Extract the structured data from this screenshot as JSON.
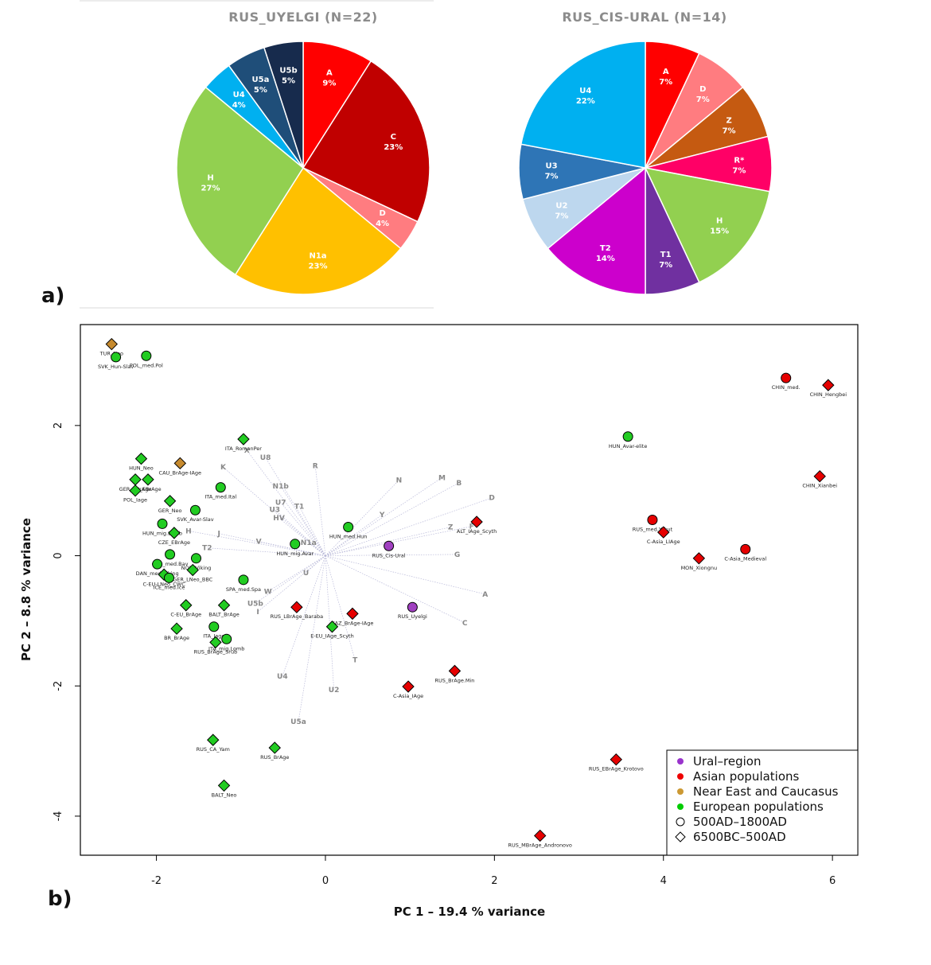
{
  "figure": {
    "panel_a_label": "a)",
    "panel_b_label": "b)"
  },
  "chart_data": [
    {
      "type": "pie",
      "title": "RUS_UYELGI (N=22)",
      "slices": [
        {
          "label": "A",
          "pct": "9%",
          "value": 9,
          "color": "#ff0000"
        },
        {
          "label": "C",
          "pct": "23%",
          "value": 23,
          "color": "#c00000"
        },
        {
          "label": "D",
          "pct": "4%",
          "value": 4,
          "color": "#ff7c80"
        },
        {
          "label": "N1a",
          "pct": "23%",
          "value": 23,
          "color": "#ffc000"
        },
        {
          "label": "H",
          "pct": "27%",
          "value": 27,
          "color": "#92d050"
        },
        {
          "label": "U4",
          "pct": "4%",
          "value": 4,
          "color": "#00b0f0"
        },
        {
          "label": "U5a",
          "pct": "5%",
          "value": 5,
          "color": "#1f4e79"
        },
        {
          "label": "U5b",
          "pct": "5%",
          "value": 5,
          "color": "#172b4d"
        }
      ]
    },
    {
      "type": "pie",
      "title": "RUS_CIS-URAL (N=14)",
      "slices": [
        {
          "label": "A",
          "pct": "7%",
          "value": 7,
          "color": "#ff0000"
        },
        {
          "label": "D",
          "pct": "7%",
          "value": 7,
          "color": "#ff7c80"
        },
        {
          "label": "Z",
          "pct": "7%",
          "value": 7,
          "color": "#c55a11"
        },
        {
          "label": "R*",
          "pct": "7%",
          "value": 7,
          "color": "#ff0066"
        },
        {
          "label": "H",
          "pct": "15%",
          "value": 15,
          "color": "#92d050"
        },
        {
          "label": "T1",
          "pct": "7%",
          "value": 7,
          "color": "#7030a0"
        },
        {
          "label": "T2",
          "pct": "14%",
          "value": 14,
          "color": "#cc00cc"
        },
        {
          "label": "U2",
          "pct": "7%",
          "value": 7,
          "color": "#bdd7ee"
        },
        {
          "label": "U3",
          "pct": "7%",
          "value": 7,
          "color": "#2e75b6"
        },
        {
          "label": "U4",
          "pct": "22%",
          "value": 22,
          "color": "#00b0f0"
        }
      ]
    },
    {
      "type": "scatter",
      "xlabel": "PC 1 –  19.4 % variance",
      "ylabel": "PC 2 –  8.8 % variance",
      "xlim": [
        -2.9,
        6.3
      ],
      "ylim": [
        -4.6,
        3.55
      ],
      "xticks": [
        -2,
        0,
        2,
        4,
        6
      ],
      "yticks": [
        -4,
        -2,
        0,
        2
      ],
      "legend_position": "bottom-right",
      "legend": [
        {
          "label": "Ural–region",
          "symbol": "dot",
          "color": "#9933cc"
        },
        {
          "label": "Asian populations",
          "symbol": "dot",
          "color": "#ee0000"
        },
        {
          "label": "Near East and Caucasus",
          "symbol": "dot",
          "color": "#cc9933"
        },
        {
          "label": "European populations",
          "symbol": "dot",
          "color": "#00cc00"
        },
        {
          "label": "500AD–1800AD",
          "symbol": "circle",
          "color": "#000000"
        },
        {
          "label": "6500BC–500AD",
          "symbol": "diamond",
          "color": "#000000"
        }
      ],
      "group_colors": {
        "ural": "#a040c0",
        "asian": "#e60000",
        "neareast": "#c68a2e",
        "european": "#22cc22"
      },
      "points": [
        {
          "label": "TUR_Neo",
          "x": -2.53,
          "y": 3.25,
          "group": "neareast",
          "shape": "diamond"
        },
        {
          "label": "SVK_Hun-Slav",
          "x": -2.48,
          "y": 3.05,
          "group": "european",
          "shape": "circle"
        },
        {
          "label": "POL_med.Pol",
          "x": -2.12,
          "y": 3.07,
          "group": "european",
          "shape": "circle"
        },
        {
          "label": "CHIN_med.",
          "x": 5.45,
          "y": 2.73,
          "group": "asian",
          "shape": "circle"
        },
        {
          "label": "CHIN_Hengbei",
          "x": 5.95,
          "y": 2.62,
          "group": "asian",
          "shape": "diamond"
        },
        {
          "label": "ITA_RomanPer",
          "x": -0.97,
          "y": 1.79,
          "group": "european",
          "shape": "diamond"
        },
        {
          "label": "HUN_Avar-elite",
          "x": 3.58,
          "y": 1.83,
          "group": "european",
          "shape": "circle"
        },
        {
          "label": "HUN_Neo",
          "x": -2.18,
          "y": 1.49,
          "group": "european",
          "shape": "diamond"
        },
        {
          "label": "CAU_BrAge-IAge",
          "x": -1.72,
          "y": 1.42,
          "group": "neareast",
          "shape": "diamond"
        },
        {
          "label": "GER_EBrAge",
          "x": -2.25,
          "y": 1.17,
          "group": "european",
          "shape": "diamond"
        },
        {
          "label": "IB_EBrAge",
          "x": -2.1,
          "y": 1.17,
          "group": "european",
          "shape": "diamond"
        },
        {
          "label": "POL_Iage",
          "x": -2.25,
          "y": 1.0,
          "group": "european",
          "shape": "diamond"
        },
        {
          "label": "ITA_med.Ital",
          "x": -1.24,
          "y": 1.05,
          "group": "european",
          "shape": "circle"
        },
        {
          "label": "CHIN_Xianbei",
          "x": 5.85,
          "y": 1.22,
          "group": "asian",
          "shape": "diamond"
        },
        {
          "label": "GER_Neo",
          "x": -1.84,
          "y": 0.84,
          "group": "european",
          "shape": "diamond"
        },
        {
          "label": "SVK_Avar-Slav",
          "x": -1.54,
          "y": 0.7,
          "group": "european",
          "shape": "circle"
        },
        {
          "label": "HUN_mig.Lomb",
          "x": -1.93,
          "y": 0.49,
          "group": "european",
          "shape": "circle"
        },
        {
          "label": "CZE_EBrAge",
          "x": -1.79,
          "y": 0.35,
          "group": "european",
          "shape": "diamond"
        },
        {
          "label": "HUN_med.Hun",
          "x": 0.27,
          "y": 0.44,
          "group": "european",
          "shape": "circle"
        },
        {
          "label": "ALT_IAge_Scyth",
          "x": 1.79,
          "y": 0.52,
          "group": "asian",
          "shape": "diamond"
        },
        {
          "label": "RUS_med.Yakut",
          "x": 3.87,
          "y": 0.55,
          "group": "asian",
          "shape": "circle"
        },
        {
          "label": "C-Asia_LIAge",
          "x": 4.0,
          "y": 0.36,
          "group": "asian",
          "shape": "diamond"
        },
        {
          "label": "HUN_mig.Avar",
          "x": -0.36,
          "y": 0.18,
          "group": "european",
          "shape": "circle"
        },
        {
          "label": "RUS_Cis-Ural",
          "x": 0.75,
          "y": 0.15,
          "group": "ural",
          "shape": "circle"
        },
        {
          "label": "C-Asia_Medieval",
          "x": 4.97,
          "y": 0.1,
          "group": "asian",
          "shape": "circle"
        },
        {
          "label": "MON_Xiongnu",
          "x": 4.42,
          "y": -0.04,
          "group": "asian",
          "shape": "diamond"
        },
        {
          "label": "GER_med.Bav",
          "x": -1.84,
          "y": 0.02,
          "group": "european",
          "shape": "circle"
        },
        {
          "label": "NOR_Viking",
          "x": -1.53,
          "y": -0.04,
          "group": "european",
          "shape": "circle"
        },
        {
          "label": "DAN_med.Viking",
          "x": -1.99,
          "y": -0.13,
          "group": "european",
          "shape": "circle"
        },
        {
          "label": "GER_LNeo_BBC",
          "x": -1.57,
          "y": -0.22,
          "group": "european",
          "shape": "diamond"
        },
        {
          "label": "C-EU-LNeo_CWC",
          "x": -1.91,
          "y": -0.29,
          "group": "european",
          "shape": "diamond"
        },
        {
          "label": "ICE_med.Ice",
          "x": -1.85,
          "y": -0.34,
          "group": "european",
          "shape": "circle"
        },
        {
          "label": "SPA_med.Spa",
          "x": -0.97,
          "y": -0.37,
          "group": "european",
          "shape": "circle"
        },
        {
          "label": "C-EU_BrAge",
          "x": -1.65,
          "y": -0.76,
          "group": "european",
          "shape": "diamond"
        },
        {
          "label": "BALT_BrAge",
          "x": -1.2,
          "y": -0.76,
          "group": "european",
          "shape": "diamond"
        },
        {
          "label": "RUS_LBrAge_Baraba",
          "x": -0.34,
          "y": -0.79,
          "group": "asian",
          "shape": "diamond"
        },
        {
          "label": "RUS_Uyelgi",
          "x": 1.03,
          "y": -0.79,
          "group": "ural",
          "shape": "circle"
        },
        {
          "label": "KAZ_BrAge-IAge",
          "x": 0.32,
          "y": -0.89,
          "group": "asian",
          "shape": "diamond"
        },
        {
          "label": "ITA_Iage",
          "x": -1.32,
          "y": -1.09,
          "group": "european",
          "shape": "circle"
        },
        {
          "label": "BR_BrAge",
          "x": -1.76,
          "y": -1.12,
          "group": "european",
          "shape": "diamond"
        },
        {
          "label": "E-EU_IAge_Scyth",
          "x": 0.08,
          "y": -1.09,
          "group": "european",
          "shape": "diamond"
        },
        {
          "label": "ITA_mig.Lomb",
          "x": -1.17,
          "y": -1.28,
          "group": "european",
          "shape": "circle"
        },
        {
          "label": "RUS_BrAge_Srub",
          "x": -1.3,
          "y": -1.33,
          "group": "european",
          "shape": "diamond"
        },
        {
          "label": "RUS_BrAge.Min",
          "x": 1.53,
          "y": -1.77,
          "group": "asian",
          "shape": "diamond"
        },
        {
          "label": "C-Asia_IAge",
          "x": 0.98,
          "y": -2.01,
          "group": "asian",
          "shape": "diamond"
        },
        {
          "label": "RUS_CA_Yam",
          "x": -1.33,
          "y": -2.83,
          "group": "european",
          "shape": "diamond"
        },
        {
          "label": "RUS_BrAge",
          "x": -0.6,
          "y": -2.95,
          "group": "european",
          "shape": "diamond"
        },
        {
          "label": "RUS_EBrAge_Krotovo",
          "x": 3.44,
          "y": -3.13,
          "group": "asian",
          "shape": "diamond"
        },
        {
          "label": "BALT_Neo",
          "x": -1.2,
          "y": -3.53,
          "group": "european",
          "shape": "diamond"
        },
        {
          "label": "RUS_MBrAge_Andronovo",
          "x": 2.54,
          "y": -4.3,
          "group": "asian",
          "shape": "diamond"
        }
      ],
      "loadings": [
        {
          "label": "X",
          "x": -0.93,
          "y": 1.62
        },
        {
          "label": "U8",
          "x": -0.71,
          "y": 1.51
        },
        {
          "label": "K",
          "x": -1.21,
          "y": 1.36
        },
        {
          "label": "R",
          "x": -0.12,
          "y": 1.38
        },
        {
          "label": "N",
          "x": 0.87,
          "y": 1.16
        },
        {
          "label": "M",
          "x": 1.38,
          "y": 1.2
        },
        {
          "label": "B",
          "x": 1.58,
          "y": 1.12
        },
        {
          "label": "N1b",
          "x": -0.53,
          "y": 1.07
        },
        {
          "label": "U7",
          "x": -0.53,
          "y": 0.82
        },
        {
          "label": "T1",
          "x": -0.31,
          "y": 0.76
        },
        {
          "label": "U3",
          "x": -0.6,
          "y": 0.71
        },
        {
          "label": "D",
          "x": 1.97,
          "y": 0.89
        },
        {
          "label": "HV",
          "x": -0.55,
          "y": 0.58
        },
        {
          "label": "Y",
          "x": 0.67,
          "y": 0.63
        },
        {
          "label": "F",
          "x": 1.73,
          "y": 0.45
        },
        {
          "label": "Z",
          "x": 1.48,
          "y": 0.44
        },
        {
          "label": "H",
          "x": -1.62,
          "y": 0.38
        },
        {
          "label": "J",
          "x": -1.26,
          "y": 0.34
        },
        {
          "label": "V",
          "x": -0.79,
          "y": 0.22
        },
        {
          "label": "N1a",
          "x": -0.2,
          "y": 0.2
        },
        {
          "label": "T2",
          "x": -1.4,
          "y": 0.12
        },
        {
          "label": "G",
          "x": 1.56,
          "y": 0.02
        },
        {
          "label": "U",
          "x": -0.23,
          "y": -0.26
        },
        {
          "label": "A",
          "x": 1.89,
          "y": -0.59
        },
        {
          "label": "W",
          "x": -0.68,
          "y": -0.55
        },
        {
          "label": "U5b",
          "x": -0.83,
          "y": -0.73
        },
        {
          "label": "I",
          "x": -0.8,
          "y": -0.86
        },
        {
          "label": "C",
          "x": 1.65,
          "y": -1.03
        },
        {
          "label": "T",
          "x": 0.35,
          "y": -1.6
        },
        {
          "label": "U4",
          "x": -0.51,
          "y": -1.85
        },
        {
          "label": "U2",
          "x": 0.1,
          "y": -2.06
        },
        {
          "label": "U5a",
          "x": -0.32,
          "y": -2.55
        }
      ]
    }
  ]
}
